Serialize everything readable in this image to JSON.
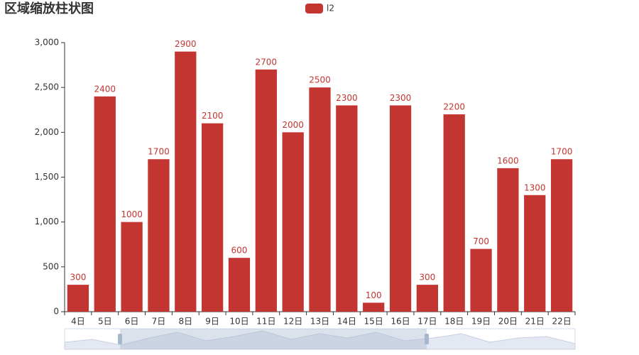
{
  "chart_data": {
    "type": "bar",
    "title": "区域缩放柱状图",
    "series": [
      {
        "name": "l2",
        "color": "#c23531",
        "values": [
          300,
          2400,
          1000,
          1700,
          2900,
          2100,
          600,
          2700,
          2000,
          2500,
          2300,
          100,
          2300,
          300,
          2200,
          700,
          1600,
          1300,
          1700
        ]
      }
    ],
    "categories": [
      "4日",
      "5日",
      "6日",
      "7日",
      "8日",
      "9日",
      "10日",
      "11日",
      "12日",
      "13日",
      "14日",
      "15日",
      "16日",
      "17日",
      "18日",
      "19日",
      "20日",
      "21日",
      "22日"
    ],
    "ylim": [
      0,
      3000
    ],
    "yticks": [
      0,
      500,
      {
        "value": 1000,
        "label": "1,000"
      },
      {
        "value": 1500,
        "label": "1,500"
      },
      {
        "value": 2000,
        "label": "2,000"
      },
      {
        "value": 2500,
        "label": "2,500"
      },
      {
        "value": 3000,
        "label": "3,000"
      }
    ],
    "grid": false
  }
}
